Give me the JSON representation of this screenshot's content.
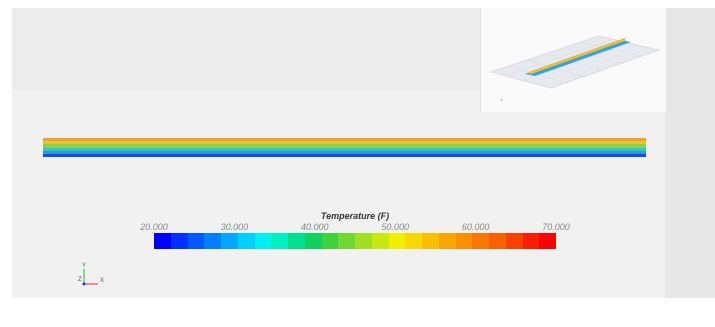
{
  "legend": {
    "title": "Temperature (F)",
    "ticks": [
      "20.000",
      "30.000",
      "40.000",
      "50.000",
      "60.000",
      "70.000"
    ],
    "range": [
      20,
      70
    ]
  },
  "axes": {
    "y_label": "Y",
    "z_label": "Z",
    "x_label": "X"
  },
  "colors": {
    "colormap": [
      "#0000ff",
      "#0030ff",
      "#0058ff",
      "#0080ff",
      "#00a8ff",
      "#00d0ff",
      "#00f0f0",
      "#00f0c0",
      "#00e090",
      "#10d060",
      "#40d040",
      "#70d830",
      "#a0e020",
      "#c8e810",
      "#f0f000",
      "#f8d800",
      "#f8c000",
      "#f8a800",
      "#f89000",
      "#f87800",
      "#f86000",
      "#f84000",
      "#f82000",
      "#ff0000"
    ],
    "strip_bands": [
      "#f0a030",
      "#e8c830",
      "#90d050",
      "#30c8c0",
      "#2a9ae0",
      "#1a4ae8"
    ]
  }
}
